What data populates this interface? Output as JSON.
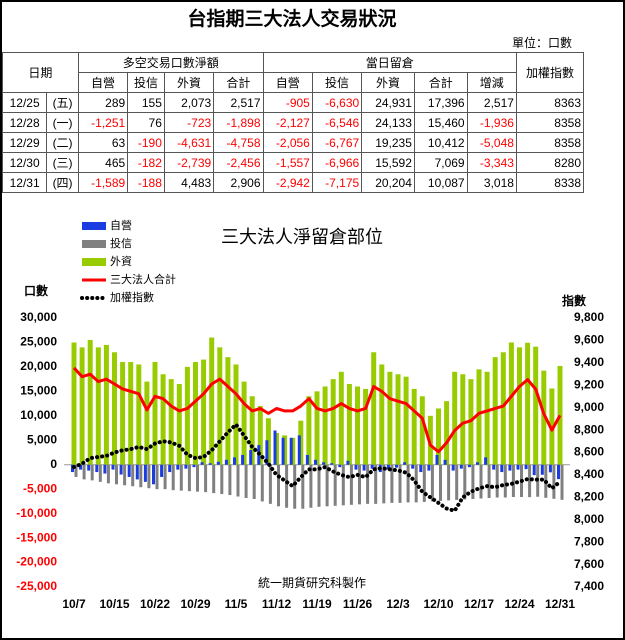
{
  "table": {
    "title": "台指期三大法人交易狀況",
    "unit": "單位：口數",
    "header": {
      "date": "日期",
      "group1": "多空交易口數淨額",
      "group2": "當日留倉",
      "index": "加權指數",
      "sub1": [
        "自營",
        "投信",
        "外資",
        "合計"
      ],
      "sub2": [
        "自營",
        "投信",
        "外資",
        "合計",
        "增減"
      ]
    },
    "rows": [
      [
        "12/25",
        "(五)",
        "289",
        "155",
        "2,073",
        "2,517",
        "-905",
        "-6,630",
        "24,931",
        "17,396",
        "2,517",
        "8363"
      ],
      [
        "12/28",
        "(一)",
        "-1,251",
        "76",
        "-723",
        "-1,898",
        "-2,127",
        "-6,546",
        "24,133",
        "15,460",
        "-1,936",
        "8358"
      ],
      [
        "12/29",
        "(二)",
        "63",
        "-190",
        "-4,631",
        "-4,758",
        "-2,056",
        "-6,767",
        "19,235",
        "10,412",
        "-5,048",
        "8358"
      ],
      [
        "12/30",
        "(三)",
        "465",
        "-182",
        "-2,739",
        "-2,456",
        "-1,557",
        "-6,966",
        "15,592",
        "7,069",
        "-3,343",
        "8280"
      ],
      [
        "12/31",
        "(四)",
        "-1,589",
        "-188",
        "4,483",
        "2,906",
        "-2,942",
        "-7,175",
        "20,204",
        "10,087",
        "3,018",
        "8338"
      ]
    ]
  },
  "chart_data": {
    "type": "bar_line",
    "title": "三大法人淨留倉部位",
    "ylabel": "口數",
    "y2label": "指數",
    "note": "統一期貨研究科製作",
    "legend": "upper left",
    "ylim": [
      -25000,
      30000
    ],
    "yticks": [
      {
        "value": -25000,
        "label": "-25,000"
      },
      {
        "value": -20000,
        "label": "-20,000"
      },
      {
        "value": -15000,
        "label": "-15,000"
      },
      {
        "value": -10000,
        "label": "-10,000"
      },
      {
        "value": -5000,
        "label": "-5,000"
      },
      0,
      {
        "value": 5000,
        "label": "5,000"
      },
      {
        "value": 10000,
        "label": "10,000"
      },
      {
        "value": 15000,
        "label": "15,000"
      },
      {
        "value": 20000,
        "label": "20,000"
      },
      {
        "value": 25000,
        "label": "25,000"
      },
      {
        "value": 30000,
        "label": "30,000"
      }
    ],
    "y2lim": [
      7400,
      9800
    ],
    "y2ticks": [
      {
        "value": 7400,
        "label": "7,400"
      },
      {
        "value": 7600,
        "label": "7,600"
      },
      {
        "value": 7800,
        "label": "7,800"
      },
      {
        "value": 8000,
        "label": "8,000"
      },
      {
        "value": 8200,
        "label": "8,200"
      },
      {
        "value": 8400,
        "label": "8,400"
      },
      {
        "value": 8600,
        "label": "8,600"
      },
      {
        "value": 8800,
        "label": "8,800"
      },
      {
        "value": 9000,
        "label": "9,000"
      },
      {
        "value": 9200,
        "label": "9,200"
      },
      {
        "value": 9400,
        "label": "9,400"
      },
      {
        "value": 9600,
        "label": "9,600"
      },
      {
        "value": 9800,
        "label": "9,800"
      }
    ],
    "categories": [
      "10/7",
      null,
      null,
      null,
      null,
      "10/15",
      null,
      null,
      null,
      null,
      "10/22",
      null,
      null,
      null,
      null,
      "10/29",
      null,
      null,
      null,
      null,
      "11/5",
      null,
      null,
      null,
      null,
      "11/12",
      null,
      null,
      null,
      null,
      "11/19",
      null,
      null,
      null,
      null,
      "11/26",
      null,
      null,
      null,
      null,
      "12/3",
      null,
      null,
      null,
      null,
      "12/10",
      null,
      null,
      null,
      null,
      "12/17",
      null,
      null,
      null,
      null,
      "12/24",
      null,
      null,
      null,
      null,
      "12/31"
    ],
    "series": [
      {
        "name": "自營",
        "type": "bar",
        "color": "#1a3ce0",
        "values": [
          -1500,
          -1000,
          -1200,
          -1500,
          -1800,
          -1000,
          -2000,
          -2500,
          -3000,
          -3500,
          -4000,
          -2500,
          -1500,
          -1000,
          -800,
          -500,
          500,
          300,
          600,
          1000,
          1500,
          2000,
          3000,
          4000,
          5000,
          7000,
          5500,
          5500,
          6000,
          2000,
          1000,
          500,
          300,
          -500,
          800,
          -1000,
          -1200,
          -800,
          -1500,
          -1000,
          -600,
          500,
          -800,
          -1500,
          -1200,
          2000,
          1000,
          -1200,
          -800,
          -500,
          500,
          1500,
          -1000,
          -1500,
          -1200,
          -1000,
          -905,
          -2127,
          -2056,
          -1557,
          -2942
        ]
      },
      {
        "name": "投信",
        "type": "bar",
        "color": "#808080",
        "values": [
          -2500,
          -3000,
          -3200,
          -3500,
          -3800,
          -4000,
          -4200,
          -4400,
          -4600,
          -4800,
          -5000,
          -5000,
          -5200,
          -5300,
          -5400,
          -5500,
          -5600,
          -5800,
          -6000,
          -6200,
          -6500,
          -6800,
          -7000,
          -7500,
          -8000,
          -8500,
          -8800,
          -9000,
          -9000,
          -8800,
          -8600,
          -8500,
          -8400,
          -8300,
          -8200,
          -8100,
          -8000,
          -8000,
          -7900,
          -7800,
          -7800,
          -7700,
          -7700,
          -7600,
          -7500,
          -7400,
          -7300,
          -7200,
          -7100,
          -7000,
          -6900,
          -6800,
          -6700,
          -6700,
          -6600,
          -6600,
          -6630,
          -6546,
          -6767,
          -6966,
          -7175
        ]
      },
      {
        "name": "外資",
        "type": "bar",
        "color": "#99cc00",
        "values": [
          25000,
          24000,
          25500,
          24000,
          24500,
          23000,
          21000,
          21000,
          20500,
          17000,
          21000,
          18500,
          17500,
          16500,
          20000,
          21000,
          21500,
          26000,
          24000,
          22000,
          20500,
          17000,
          14000,
          12000,
          9500,
          6500,
          6000,
          5500,
          9000,
          14000,
          15000,
          16000,
          17500,
          19000,
          16500,
          16000,
          15500,
          23000,
          20500,
          19000,
          18500,
          18000,
          15500,
          14000,
          10000,
          11500,
          13000,
          19000,
          18500,
          17500,
          19500,
          19000,
          22000,
          23000,
          25000,
          24000,
          24931,
          24133,
          19235,
          15592,
          20204
        ]
      },
      {
        "name": "三大法人合計",
        "type": "line",
        "color": "#ff0000",
        "values": [
          19800,
          18000,
          18500,
          17000,
          17500,
          16500,
          15500,
          15000,
          14500,
          11200,
          14000,
          13500,
          12000,
          11000,
          11500,
          13000,
          14500,
          16500,
          17500,
          16000,
          14500,
          12500,
          11000,
          11500,
          10500,
          11500,
          11000,
          11000,
          12000,
          13500,
          11500,
          11000,
          11500,
          12500,
          11500,
          11000,
          11500,
          16000,
          15000,
          13500,
          13000,
          12500,
          11000,
          9500,
          4000,
          2650,
          4500,
          7000,
          8500,
          9000,
          10500,
          11000,
          11500,
          12000,
          14000,
          16000,
          17396,
          15460,
          10412,
          7069,
          10087
        ]
      },
      {
        "name": "加權指數",
        "type": "line",
        "style": "dotted",
        "axis": "y2",
        "color": "#000000",
        "values": [
          8470,
          8500,
          8550,
          8560,
          8570,
          8600,
          8620,
          8630,
          8650,
          8630,
          8680,
          8700,
          8690,
          8660,
          8580,
          8550,
          8560,
          8620,
          8700,
          8780,
          8850,
          8750,
          8650,
          8580,
          8500,
          8400,
          8350,
          8300,
          8380,
          8450,
          8450,
          8470,
          8430,
          8400,
          8380,
          8400,
          8380,
          8450,
          8460,
          8450,
          8440,
          8420,
          8350,
          8250,
          8200,
          8150,
          8100,
          8080,
          8200,
          8250,
          8280,
          8300,
          8290,
          8310,
          8320,
          8340,
          8363,
          8358,
          8358,
          8280,
          8338
        ]
      }
    ]
  }
}
